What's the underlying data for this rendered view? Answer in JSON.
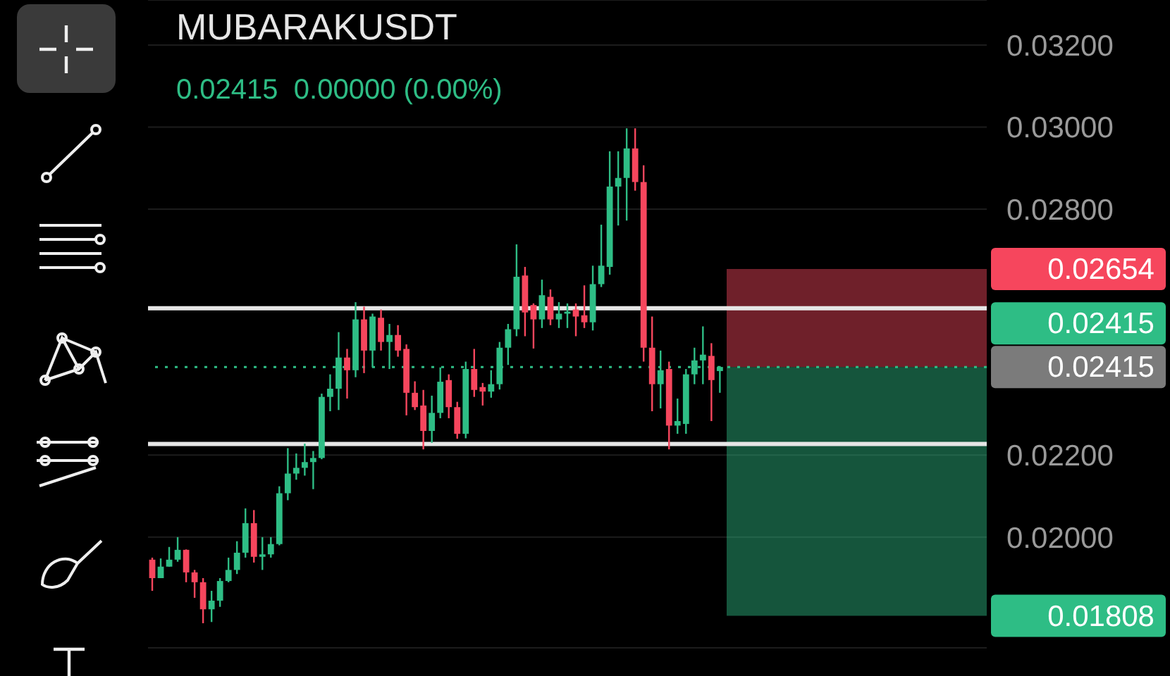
{
  "chart_data": {
    "type": "candlestick",
    "title": "MUBARAKUSDT",
    "subtitle": "0.02415  0.00000 (0.00%)",
    "categories": [
      null,
      null,
      null,
      null,
      null,
      null,
      null,
      null,
      null,
      null,
      null,
      null,
      null,
      null,
      null,
      null,
      null,
      null,
      null,
      null,
      null,
      null,
      null,
      null,
      null,
      null,
      null,
      null,
      null,
      null,
      null,
      null,
      null,
      null,
      null,
      null,
      null,
      null,
      null,
      null,
      null,
      null,
      null,
      null,
      null,
      null,
      null,
      null,
      null,
      null,
      null,
      null,
      null,
      null,
      null,
      null,
      null,
      null,
      null,
      null,
      null,
      null,
      null,
      null,
      null,
      null,
      null,
      null,
      null,
      null,
      null,
      null,
      null,
      null,
      null,
      null,
      null,
      null,
      null,
      null,
      null,
      null,
      null,
      null,
      null,
      null,
      null,
      null,
      null,
      null,
      null,
      null,
      null,
      null,
      null,
      null,
      null,
      null,
      null
    ],
    "ohlc": [
      [
        0.01945,
        0.0195,
        0.01869,
        0.019
      ],
      [
        0.019,
        0.01948,
        0.019,
        0.01928
      ],
      [
        0.01928,
        0.01976,
        0.01928,
        0.01945
      ],
      [
        0.01945,
        0.02,
        0.0194,
        0.01969
      ],
      [
        0.01969,
        0.0197,
        0.0189,
        0.01914
      ],
      [
        0.01914,
        0.0192,
        0.01852,
        0.0189
      ],
      [
        0.0189,
        0.019,
        0.0179,
        0.01824
      ],
      [
        0.01824,
        0.01869,
        0.01793,
        0.01845
      ],
      [
        0.01845,
        0.019,
        0.0183,
        0.01893
      ],
      [
        0.01893,
        0.0195,
        0.0189,
        0.0192
      ],
      [
        0.0192,
        0.0199,
        0.0191,
        0.01962
      ],
      [
        0.01962,
        0.0207,
        0.0195,
        0.02034
      ],
      [
        0.02034,
        0.02066,
        0.01938,
        0.01952
      ],
      [
        0.01952,
        0.02,
        0.0192,
        0.01958
      ],
      [
        0.01958,
        0.02,
        0.0195,
        0.01983
      ],
      [
        0.01983,
        0.02124,
        0.0198,
        0.02107
      ],
      [
        0.02107,
        0.02217,
        0.0209,
        0.02155
      ],
      [
        0.02155,
        0.02204,
        0.0214,
        0.02169
      ],
      [
        0.02169,
        0.02228,
        0.0215,
        0.02183
      ],
      [
        0.02183,
        0.0221,
        0.02117,
        0.02193
      ],
      [
        0.02193,
        0.0235,
        0.0219,
        0.02342
      ],
      [
        0.02342,
        0.02397,
        0.02307,
        0.02362
      ],
      [
        0.02362,
        0.025,
        0.0231,
        0.02438
      ],
      [
        0.02438,
        0.02459,
        0.02338,
        0.02407
      ],
      [
        0.02407,
        0.02573,
        0.0239,
        0.02531
      ],
      [
        0.02531,
        0.02562,
        0.024,
        0.02455
      ],
      [
        0.02455,
        0.02545,
        0.02414,
        0.02538
      ],
      [
        0.02535,
        0.02555,
        0.02455,
        0.02476
      ],
      [
        0.02476,
        0.0252,
        0.0241,
        0.02493
      ],
      [
        0.02493,
        0.02517,
        0.0244,
        0.02455
      ],
      [
        0.02459,
        0.0247,
        0.02297,
        0.02352
      ],
      [
        0.02352,
        0.0238,
        0.0231,
        0.02317
      ],
      [
        0.02321,
        0.02359,
        0.02214,
        0.02259
      ],
      [
        0.02259,
        0.02345,
        0.0223,
        0.02303
      ],
      [
        0.02303,
        0.02414,
        0.0229,
        0.02379
      ],
      [
        0.02383,
        0.02397,
        0.0229,
        0.02317
      ],
      [
        0.02317,
        0.0233,
        0.0224,
        0.02252
      ],
      [
        0.02252,
        0.02428,
        0.02241,
        0.0241
      ],
      [
        0.0241,
        0.02459,
        0.02342,
        0.02359
      ],
      [
        0.02366,
        0.02376,
        0.02321,
        0.02355
      ],
      [
        0.02355,
        0.02407,
        0.0234,
        0.02373
      ],
      [
        0.02373,
        0.02476,
        0.0236,
        0.02462
      ],
      [
        0.02462,
        0.0252,
        0.0242,
        0.02507
      ],
      [
        0.02507,
        0.02714,
        0.0249,
        0.02635
      ],
      [
        0.02638,
        0.02659,
        0.0249,
        0.02548
      ],
      [
        0.02566,
        0.0257,
        0.0246,
        0.02531
      ],
      [
        0.02531,
        0.02628,
        0.0251,
        0.0259
      ],
      [
        0.02586,
        0.02604,
        0.02517,
        0.02531
      ],
      [
        0.02531,
        0.02573,
        0.0251,
        0.02545
      ],
      [
        0.02545,
        0.0257,
        0.0251,
        0.0255
      ],
      [
        0.02555,
        0.0257,
        0.0249,
        0.02538
      ],
      [
        0.02541,
        0.02614,
        0.0251,
        0.02524
      ],
      [
        0.02524,
        0.02662,
        0.02504,
        0.02617
      ],
      [
        0.02617,
        0.02762,
        0.0261,
        0.02662
      ],
      [
        0.02659,
        0.02941,
        0.0264,
        0.02855
      ],
      [
        0.02855,
        0.02941,
        0.0276,
        0.02876
      ],
      [
        0.02876,
        0.02997,
        0.02772,
        0.02948
      ],
      [
        0.02948,
        0.02997,
        0.02845,
        0.02866
      ],
      [
        0.02866,
        0.02907,
        0.02428,
        0.02462
      ],
      [
        0.02462,
        0.02538,
        0.02307,
        0.02373
      ],
      [
        0.02373,
        0.02455,
        0.02314,
        0.02407
      ],
      [
        0.0241,
        0.02428,
        0.02214,
        0.02272
      ],
      [
        0.02272,
        0.02338,
        0.02252,
        0.02283
      ],
      [
        0.02276,
        0.0241,
        0.02252,
        0.02397
      ],
      [
        0.02397,
        0.02462,
        0.02373,
        0.02431
      ],
      [
        0.02431,
        0.02514,
        0.02373,
        0.02445
      ],
      [
        0.02442,
        0.02473,
        0.02283,
        0.02383
      ],
      [
        0.02405,
        0.02417,
        0.02352,
        0.02415
      ],
      null,
      null,
      null,
      null,
      null,
      null,
      null,
      null,
      null,
      null,
      null,
      null,
      null,
      null,
      null,
      null,
      null,
      null,
      null,
      null,
      null,
      null,
      null,
      null,
      null,
      null,
      null,
      null,
      null,
      null,
      null
    ],
    "colors": [
      "#f6465d",
      "#2ebd85",
      "#2ebd85",
      "#2ebd85",
      "#f6465d",
      "#f6465d",
      "#f6465d",
      "#2ebd85",
      "#2ebd85",
      "#2ebd85",
      "#2ebd85",
      "#2ebd85",
      "#f6465d",
      "#2ebd85",
      "#2ebd85",
      "#2ebd85",
      "#2ebd85",
      "#2ebd85",
      "#2ebd85",
      "#2ebd85",
      "#2ebd85",
      "#2ebd85",
      "#2ebd85",
      "#f6465d",
      "#2ebd85",
      "#f6465d",
      "#2ebd85",
      "#f6465d",
      "#2ebd85",
      "#f6465d",
      "#f6465d",
      "#f6465d",
      "#f6465d",
      "#2ebd85",
      "#2ebd85",
      "#f6465d",
      "#f6465d",
      "#2ebd85",
      "#f6465d",
      "#f6465d",
      "#2ebd85",
      "#2ebd85",
      "#2ebd85",
      "#2ebd85",
      "#f6465d",
      "#f6465d",
      "#2ebd85",
      "#f6465d",
      "#2ebd85",
      "#2ebd85",
      "#f6465d",
      "#f6465d",
      "#2ebd85",
      "#2ebd85",
      "#2ebd85",
      "#2ebd85",
      "#2ebd85",
      "#f6465d",
      "#f6465d",
      "#f6465d",
      "#2ebd85",
      "#f6465d",
      "#2ebd85",
      "#2ebd85",
      "#2ebd85",
      "#2ebd85",
      "#f6465d",
      "#2ebd85",
      null,
      null,
      null,
      null,
      null,
      null,
      null,
      null,
      null,
      null,
      null,
      null,
      null,
      null,
      null,
      null,
      null,
      null,
      null,
      null,
      null,
      null,
      null,
      null,
      null,
      null,
      null,
      null,
      null,
      null,
      null
    ],
    "ylim": [
      0.0173,
      0.0331
    ],
    "yticks": [
      {
        "value": 0.032,
        "label": "0.03200"
      },
      {
        "value": 0.03,
        "label": "0.03000"
      },
      {
        "value": 0.028,
        "label": "0.02800"
      },
      {
        "value": 0.022,
        "label": "0.02200"
      },
      {
        "value": 0.02,
        "label": "0.02000"
      }
    ],
    "grid": "y",
    "tick_labels": "y",
    "ref_lines": [
      {
        "axis": "y",
        "value": 0.02558,
        "color": "#e6e6e6",
        "line_style": "solid"
      },
      {
        "axis": "y",
        "value": 0.02227,
        "color": "#e6e6e6",
        "line_style": "solid"
      },
      {
        "axis": "y",
        "value": 0.02415,
        "label": "0.02415",
        "color": "#2ebd85",
        "line_style": "dotted"
      }
    ],
    "bands": [
      {
        "axis": "y",
        "from": 0.02415,
        "to": 0.02654,
        "label": "0.02654",
        "color": "#f6465d"
      },
      {
        "axis": "y",
        "from": 0.01808,
        "to": 0.02415,
        "label": "0.01808",
        "color": "#2ebd85"
      }
    ],
    "annotations": [
      "0.02415"
    ]
  }
}
